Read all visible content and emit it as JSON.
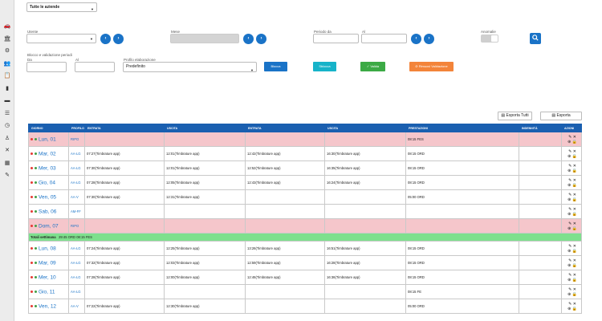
{
  "sidebar_icons": [
    "car-icon",
    "building-icon",
    "gear-icon",
    "users-icon",
    "clipboard-icon",
    "id-card-icon",
    "card-icon",
    "list-icon",
    "clock-icon",
    "person-icon",
    "close-icon",
    "calendar-icon",
    "wrench-icon"
  ],
  "company_select": {
    "value": "Tutte le aziende"
  },
  "filters": {
    "utente_label": "Utente",
    "mese_label": "Mese",
    "periodo_da_label": "Periodo da",
    "al_label": "Al",
    "anomalie_label": "Anomalie",
    "blocco_label": "Blocco e validazione periodi",
    "da_label": "Da",
    "al2_label": "Al",
    "profilo_label": "Profilo elaborazione",
    "profilo_value": "Predefinito"
  },
  "actions": {
    "blocca": "Blocca",
    "sblocca": "Sblocca",
    "valida": "Valida",
    "rimuovi": "Rimuovi Validazione"
  },
  "export": {
    "tutti": "Esporta Tutti",
    "esporta": "Esporta"
  },
  "colors": {
    "header_blue": "#1a5fb0",
    "holiday_pink": "#f5c6cb",
    "total_green": "#7ee08d",
    "btn_blue": "#1a73c7",
    "btn_teal": "#17b3c9",
    "btn_green": "#3caa45",
    "btn_orange": "#f3843a"
  },
  "table": {
    "headers": [
      "GIORNO",
      "PROFILO",
      "ENTRATA",
      "USCITA",
      "ENTRATA",
      "USCITA",
      "PRESTAZIONI",
      "INDENNITÀ",
      "AZIONI"
    ],
    "rows": [
      {
        "type": "holiday",
        "day": "Lun, 01",
        "profile": "RIPO",
        "in1": "",
        "out1": "",
        "in2": "",
        "out2": "",
        "prest": "08:15 FES"
      },
      {
        "type": "normal",
        "day": "Mar, 02",
        "profile": "AA-LG",
        "in1": "07:27(Timbrature app)",
        "out1": "12:01(Timbrature app)",
        "in2": "12:42(Timbrature app)",
        "out2": "16:30(Timbrature app)",
        "prest": "08:15 ORD"
      },
      {
        "type": "normal",
        "day": "Mer, 03",
        "profile": "AA-LG",
        "in1": "07:30(Timbrature app)",
        "out1": "12:01(Timbrature app)",
        "in2": "12:52(Timbrature app)",
        "out2": "16:35(Timbrature app)",
        "prest": "08:15 ORD"
      },
      {
        "type": "normal",
        "day": "Gio, 04",
        "profile": "AA-LG",
        "in1": "07:28(Timbrature app)",
        "out1": "12:05(Timbrature app)",
        "in2": "12:43(Timbrature app)",
        "out2": "16:24(Timbrature app)",
        "prest": "08:15 ORD"
      },
      {
        "type": "normal",
        "day": "Ven, 05",
        "profile": "AA-V",
        "in1": "07:30(Timbrature app)",
        "out1": "12:31(Timbrature app)",
        "in2": "",
        "out2": "",
        "prest": "05:00 ORD"
      },
      {
        "type": "normal",
        "day": "Sab, 06",
        "profile": "AM-FF",
        "in1": "",
        "out1": "",
        "in2": "",
        "out2": "",
        "prest": ""
      },
      {
        "type": "holiday",
        "day": "Dom, 07",
        "profile": "RIPO",
        "in1": "",
        "out1": "",
        "in2": "",
        "out2": "",
        "prest": ""
      },
      {
        "type": "total",
        "label": "Totali settimana",
        "text": "29:45   ORD    08:15   FES"
      },
      {
        "type": "normal",
        "day": "Lun, 08",
        "profile": "AA-LG",
        "in1": "07:24(Timbrature app)",
        "out1": "12:25(Timbrature app)",
        "in2": "13:26(Timbrature app)",
        "out2": "16:51(Timbrature app)",
        "prest": "08:15 ORD"
      },
      {
        "type": "normal",
        "day": "Mar, 09",
        "profile": "AA-LG",
        "in1": "07:32(Timbrature app)",
        "out1": "12:03(Timbrature app)",
        "in2": "12:59(Timbrature app)",
        "out2": "16:28(Timbrature app)",
        "prest": "08:15 ORD"
      },
      {
        "type": "normal",
        "day": "Mer, 10",
        "profile": "AA-LG",
        "in1": "07:28(Timbrature app)",
        "out1": "12:00(Timbrature app)",
        "in2": "12:46(Timbrature app)",
        "out2": "16:36(Timbrature app)",
        "prest": "08:15 ORD"
      },
      {
        "type": "normal",
        "day": "Gio, 11",
        "profile": "AA-LG",
        "in1": "",
        "out1": "",
        "in2": "",
        "out2": "",
        "prest": "08:15 FE"
      },
      {
        "type": "normal",
        "day": "Ven, 12",
        "profile": "AA-V",
        "in1": "07:22(Timbrature app)",
        "out1": "12:30(Timbrature app)",
        "in2": "",
        "out2": "",
        "prest": "05:00 ORD"
      }
    ]
  }
}
